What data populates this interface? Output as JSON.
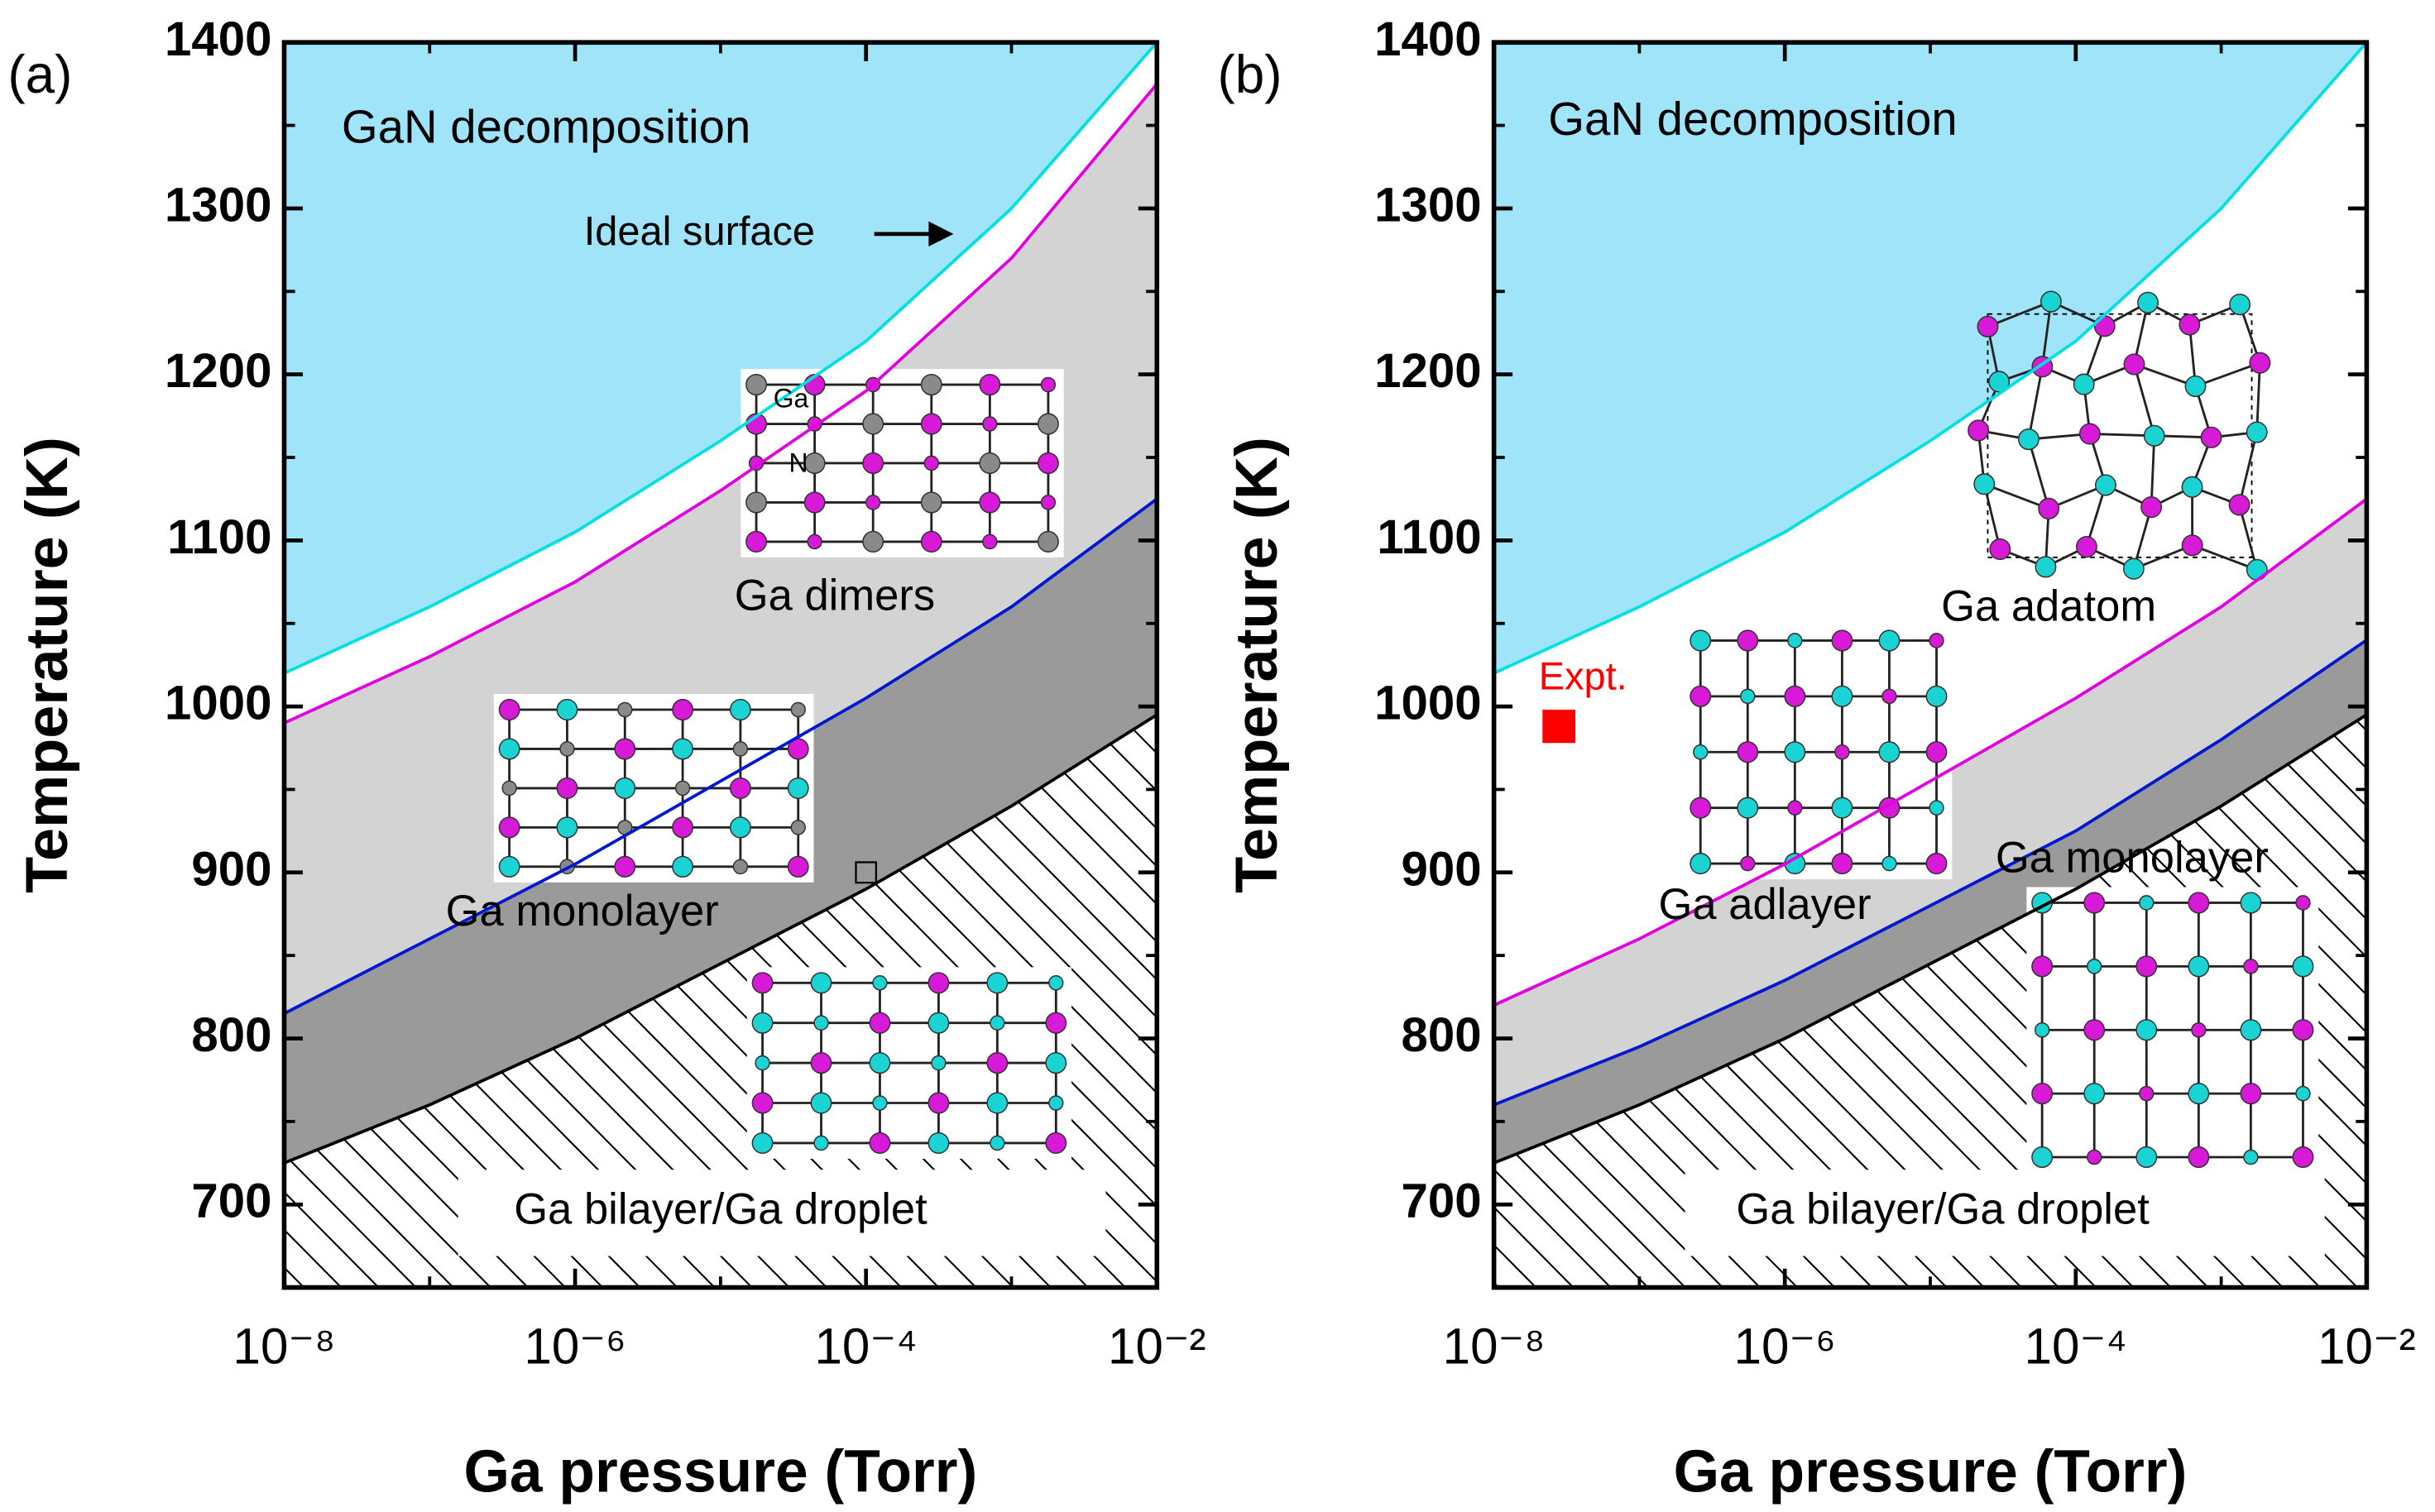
{
  "chart_data": [
    {
      "type": "area",
      "panel_label": "(a)",
      "xlabel": "Ga pressure (Torr)",
      "ylabel": "Temperature (K)",
      "xscale": "log",
      "xlim": [
        1e-08,
        0.01
      ],
      "ylim": [
        650,
        1400
      ],
      "xticks": [
        {
          "value": 1e-08,
          "label": "10⁻⁸"
        },
        {
          "value": 1e-06,
          "label": "10⁻⁶"
        },
        {
          "value": 0.0001,
          "label": "10⁻⁴"
        },
        {
          "value": 0.01,
          "label": "10⁻²"
        }
      ],
      "xminor": [
        1e-07,
        1e-05,
        0.001
      ],
      "yticks": [
        700,
        800,
        900,
        1000,
        1100,
        1200,
        1300,
        1400
      ],
      "yminor": [
        650,
        750,
        850,
        950,
        1050,
        1150,
        1250,
        1350
      ],
      "x": [
        1e-08,
        1e-07,
        1e-06,
        1e-05,
        0.0001,
        0.001,
        0.01
      ],
      "top_fill": "#a0e4fa",
      "series": [
        {
          "color": "#00e0e0",
          "fill": "#ffffff",
          "values": [
            1020,
            1060,
            1105,
            1160,
            1220,
            1300,
            1400
          ]
        },
        {
          "color": "#e000e0",
          "fill": "#d3d3d3",
          "values": [
            990,
            1030,
            1075,
            1130,
            1190,
            1270,
            1375
          ]
        },
        {
          "color": "#0018d0",
          "fill": "#9a9a9a",
          "values": [
            815,
            860,
            905,
            955,
            1005,
            1060,
            1125
          ]
        },
        {
          "color": "#000000",
          "fill": "hatch",
          "values": [
            725,
            760,
            800,
            845,
            890,
            940,
            995
          ]
        }
      ],
      "annotations": [
        "GaN decomposition",
        "Ideal surface",
        "Ga dimers",
        "Ga",
        "N",
        "Ga monolayer",
        "Ga bilayer/Ga droplet"
      ],
      "points": [
        {
          "x": 0.0001,
          "y": 900,
          "color": "#000000",
          "filled": false
        }
      ]
    },
    {
      "type": "area",
      "panel_label": "(b)",
      "xlabel": "Ga pressure (Torr)",
      "ylabel": "Temperature (K)",
      "xscale": "log",
      "xlim": [
        1e-08,
        0.01
      ],
      "ylim": [
        650,
        1400
      ],
      "xticks": [
        {
          "value": 1e-08,
          "label": "10⁻⁸"
        },
        {
          "value": 1e-06,
          "label": "10⁻⁶"
        },
        {
          "value": 0.0001,
          "label": "10⁻⁴"
        },
        {
          "value": 0.01,
          "label": "10⁻²"
        }
      ],
      "xminor": [
        1e-07,
        1e-05,
        0.001
      ],
      "yticks": [
        700,
        800,
        900,
        1000,
        1100,
        1200,
        1300,
        1400
      ],
      "yminor": [
        650,
        750,
        850,
        950,
        1050,
        1150,
        1250,
        1350
      ],
      "x": [
        1e-08,
        1e-07,
        1e-06,
        1e-05,
        0.0001,
        0.001,
        0.01
      ],
      "top_fill": "#a0e4fa",
      "series": [
        {
          "color": "#00e0e0",
          "fill": "#ffffff",
          "values": [
            1020,
            1060,
            1105,
            1160,
            1220,
            1300,
            1400
          ]
        },
        {
          "color": "#e000e0",
          "fill": "#d3d3d3",
          "values": [
            820,
            860,
            905,
            955,
            1005,
            1060,
            1125
          ]
        },
        {
          "color": "#0018d0",
          "fill": "#9a9a9a",
          "values": [
            760,
            795,
            835,
            880,
            925,
            980,
            1040
          ]
        },
        {
          "color": "#000000",
          "fill": "hatch",
          "values": [
            725,
            760,
            800,
            845,
            890,
            940,
            995
          ]
        }
      ],
      "annotations": [
        "GaN decomposition",
        "Ga adatom",
        "Ga adlayer",
        "Ga monolayer",
        "Ga bilayer/Ga droplet"
      ],
      "points": [
        {
          "x": 2.8e-08,
          "y": 988,
          "color": "#ff0000",
          "filled": true,
          "label": "Expt."
        }
      ]
    }
  ]
}
